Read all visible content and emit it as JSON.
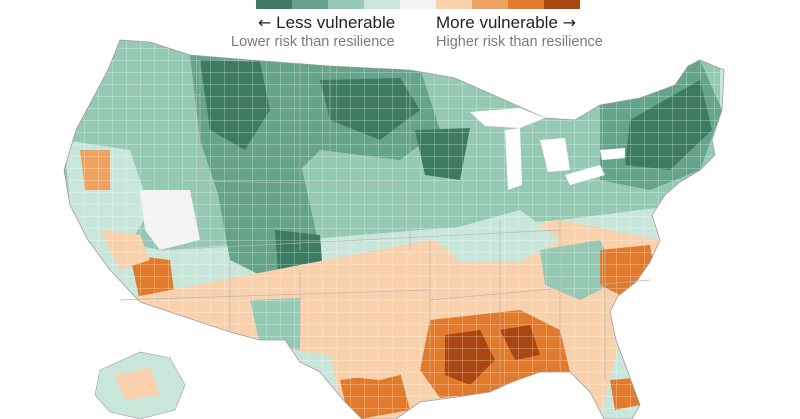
{
  "legend": {
    "less_label": "Less vulnerable",
    "less_sub": "Lower risk than resilience",
    "more_label": "More vulnerable",
    "more_sub": "Higher risk than resilience",
    "left_arrow": "←",
    "right_arrow": "→",
    "scale_colors": [
      "#3d7a62",
      "#65a38a",
      "#95c9b4",
      "#c8e6da",
      "#f3f3f3",
      "#f9d1ad",
      "#eea262",
      "#e07a2c",
      "#a94713"
    ]
  },
  "map": {
    "region": "contiguous-united-states-by-county",
    "palette": {
      "dark_green": "#3d7a62",
      "mid_green": "#65a38a",
      "light_green": "#95c9b4",
      "pale_green": "#c8e6da",
      "neutral": "#f3f3f3",
      "pale_orange": "#f9d1ad",
      "light_orange": "#eea262",
      "orange": "#e07a2c",
      "dark_orange": "#a94713",
      "border": "#ffffff",
      "state_border": "#bdbdbd"
    }
  }
}
